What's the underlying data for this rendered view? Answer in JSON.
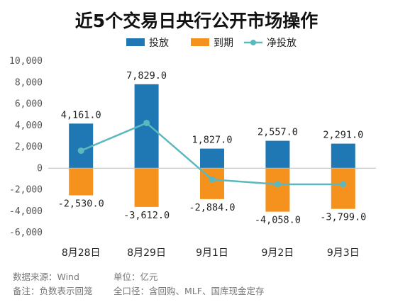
{
  "chart_data": {
    "type": "bar",
    "title": "近5个交易日央行公开市场操作",
    "categories": [
      "8月28日",
      "8月29日",
      "9月1日",
      "9月2日",
      "9月3日"
    ],
    "series": [
      {
        "name": "投放",
        "kind": "bar",
        "color": "#1f77b4",
        "values": [
          4161.0,
          7829.0,
          1827.0,
          2557.0,
          2291.0
        ]
      },
      {
        "name": "到期",
        "kind": "bar",
        "color": "#f5921e",
        "values": [
          -2530.0,
          -3612.0,
          -2884.0,
          -4058.0,
          -3799.0
        ]
      },
      {
        "name": "净投放",
        "kind": "line",
        "color": "#5bb8bf",
        "values": [
          1631.0,
          4217.0,
          -1057.0,
          -1501.0,
          -1508.0
        ]
      }
    ],
    "data_labels": {
      "投放": [
        "4,161.0",
        "7,829.0",
        "1,827.0",
        "2,557.0",
        "2,291.0"
      ],
      "到期": [
        "-2,530.0",
        "-3,612.0",
        "-2,884.0",
        "-4,058.0",
        "-3,799.0"
      ]
    },
    "yticks": [
      10000,
      8000,
      6000,
      4000,
      2000,
      0,
      -2000,
      -4000,
      -6000
    ],
    "ytick_labels": [
      "10,000",
      "8,000",
      "6,000",
      "4,000",
      "2,000",
      "0",
      "-2,000",
      "-4,000",
      "-6,000"
    ],
    "ylim": [
      -6000,
      10000
    ],
    "grid": false,
    "legend_position": "top-center",
    "xlabel": "",
    "ylabel": ""
  },
  "footnotes": {
    "source": "数据来源：Wind",
    "unit": "单位：亿元",
    "note": "备注：负数表示回笼",
    "scope": "全口径：含回购、MLF、国库现金定存"
  }
}
